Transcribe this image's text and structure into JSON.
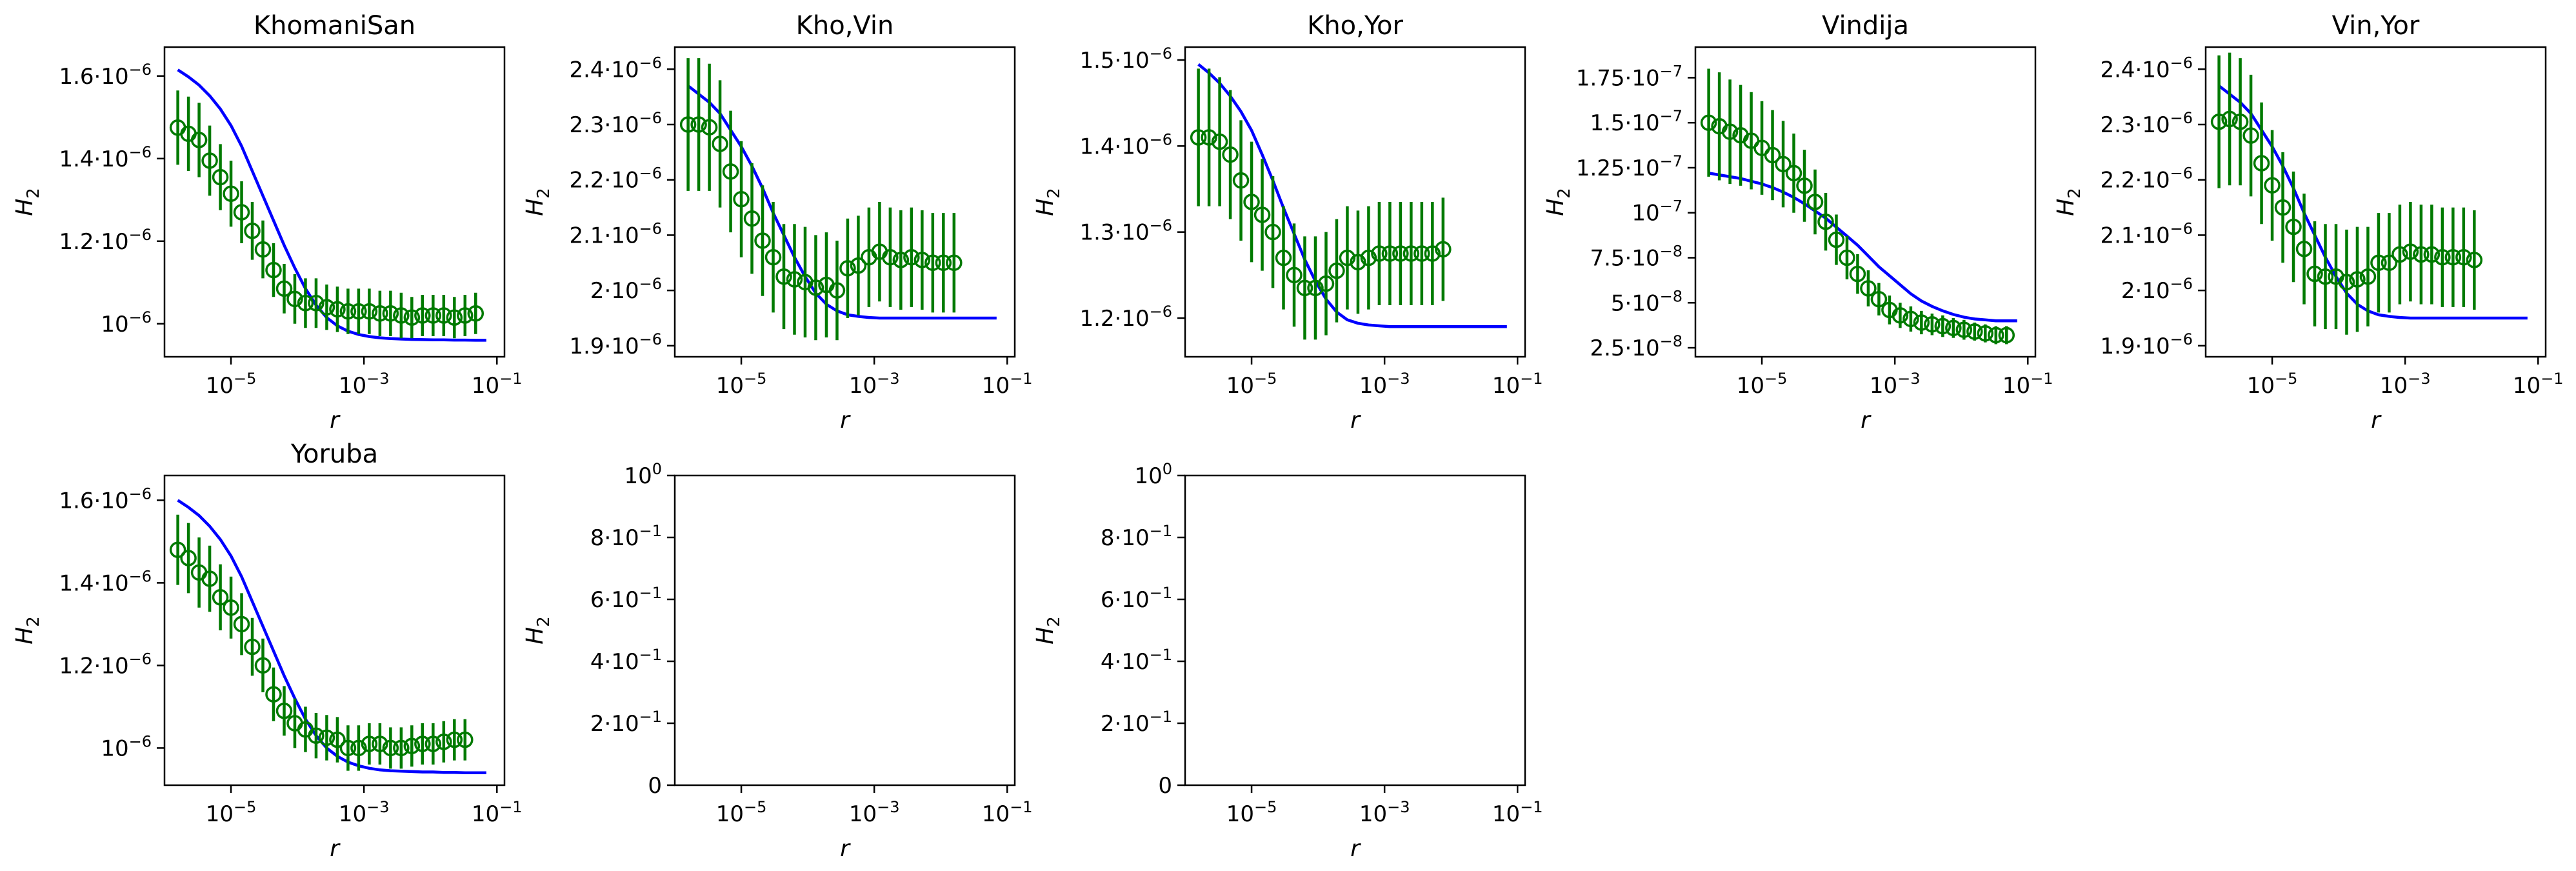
{
  "figure": {
    "grid": false,
    "colors": {
      "model": "#0000ff",
      "data": "#007a00",
      "frame": "#000000"
    }
  },
  "chart_data": [
    {
      "type": "line",
      "title": "KhomaniSan",
      "xlabel": "r",
      "ylabel": "H2",
      "xscale": "log",
      "xlim": [
        1e-06,
        0.13
      ],
      "ylim": [
        9.2e-07,
        1.67e-06
      ],
      "x_ticks": [
        {
          "v": 1e-05,
          "l": "10^-5"
        },
        {
          "v": 0.001,
          "l": "10^-3"
        },
        {
          "v": 0.1,
          "l": "10^-1"
        }
      ],
      "y_ticks": [
        {
          "v": 1.6e-06,
          "l": "1.6·10^-6"
        },
        {
          "v": 1.4e-06,
          "l": "1.4·10^-6"
        },
        {
          "v": 1.2e-06,
          "l": "1.2·10^-6"
        },
        {
          "v": 1e-06,
          "l": "10^-6"
        }
      ],
      "model_y": [
        1.615e-06,
        1.598e-06,
        1.578e-06,
        1.552e-06,
        1.52e-06,
        1.48e-06,
        1.43e-06,
        1.37e-06,
        1.31e-06,
        1.25e-06,
        1.19e-06,
        1.135e-06,
        1.085e-06,
        1.045e-06,
        1.015e-06,
        9.95e-07,
        9.82e-07,
        9.74e-07,
        9.69e-07,
        9.66e-07,
        9.64e-07,
        9.63e-07,
        9.62e-07,
        9.615e-07,
        9.61e-07,
        9.61e-07,
        9.605e-07,
        9.605e-07,
        9.6e-07,
        9.6e-07
      ],
      "data_y": [
        1.475e-06,
        1.46e-06,
        1.445e-06,
        1.395e-06,
        1.355e-06,
        1.315e-06,
        1.27e-06,
        1.225e-06,
        1.18e-06,
        1.13e-06,
        1.085e-06,
        1.06e-06,
        1.05e-06,
        1.05e-06,
        1.04e-06,
        1.035e-06,
        1.03e-06,
        1.03e-06,
        1.03e-06,
        1.025e-06,
        1.025e-06,
        1.02e-06,
        1.015e-06,
        1.02e-06,
        1.02e-06,
        1.02e-06,
        1.015e-06,
        1.02e-06,
        1.025e-06
      ],
      "data_err": [
        9e-08,
        9e-08,
        9e-08,
        8.5e-08,
        8e-08,
        8e-08,
        7.5e-08,
        7e-08,
        7e-08,
        6.5e-08,
        6e-08,
        6e-08,
        6e-08,
        6e-08,
        5.5e-08,
        5.5e-08,
        5.5e-08,
        5.5e-08,
        5.5e-08,
        5.5e-08,
        5.5e-08,
        5.5e-08,
        5e-08,
        5e-08,
        5e-08,
        5e-08,
        5e-08,
        5e-08,
        5e-08
      ]
    },
    {
      "type": "line",
      "title": "Kho,Vin",
      "xlabel": "r",
      "ylabel": "H2",
      "xscale": "log",
      "xlim": [
        1e-06,
        0.13
      ],
      "ylim": [
        1.88e-06,
        2.44e-06
      ],
      "x_ticks": [
        {
          "v": 1e-05,
          "l": "10^-5"
        },
        {
          "v": 0.001,
          "l": "10^-3"
        },
        {
          "v": 0.1,
          "l": "10^-1"
        }
      ],
      "y_ticks": [
        {
          "v": 2.4e-06,
          "l": "2.4·10^-6"
        },
        {
          "v": 2.3e-06,
          "l": "2.3·10^-6"
        },
        {
          "v": 2.2e-06,
          "l": "2.2·10^-6"
        },
        {
          "v": 2.1e-06,
          "l": "2.1·10^-6"
        },
        {
          "v": 2e-06,
          "l": "2·10^-6"
        },
        {
          "v": 1.9e-06,
          "l": "1.9·10^-6"
        }
      ],
      "model_y": [
        2.37e-06,
        2.355e-06,
        2.34e-06,
        2.32e-06,
        2.29e-06,
        2.26e-06,
        2.225e-06,
        2.185e-06,
        2.14e-06,
        2.1e-06,
        2.06e-06,
        2.025e-06,
        1.995e-06,
        1.975e-06,
        1.963e-06,
        1.956e-06,
        1.953e-06,
        1.951e-06,
        1.95e-06,
        1.95e-06,
        1.95e-06,
        1.95e-06,
        1.95e-06,
        1.95e-06,
        1.95e-06,
        1.95e-06,
        1.95e-06,
        1.95e-06,
        1.95e-06,
        1.95e-06
      ],
      "data_y": [
        2.3e-06,
        2.3e-06,
        2.295e-06,
        2.265e-06,
        2.215e-06,
        2.165e-06,
        2.13e-06,
        2.09e-06,
        2.06e-06,
        2.025e-06,
        2.02e-06,
        2.015e-06,
        2.005e-06,
        2.01e-06,
        2e-06,
        2.04e-06,
        2.045e-06,
        2.06e-06,
        2.07e-06,
        2.06e-06,
        2.055e-06,
        2.06e-06,
        2.055e-06,
        2.05e-06,
        2.05e-06,
        2.05e-06
      ],
      "data_err": [
        1.2e-07,
        1.2e-07,
        1.15e-07,
        1.15e-07,
        1.1e-07,
        1.05e-07,
        1e-07,
        1e-07,
        1e-07,
        9.5e-08,
        1e-07,
        1e-07,
        9.5e-08,
        9.5e-08,
        9e-08,
        9e-08,
        9e-08,
        9e-08,
        9e-08,
        9e-08,
        9e-08,
        9e-08,
        9e-08,
        9e-08,
        9e-08,
        9e-08
      ]
    },
    {
      "type": "line",
      "title": "Kho,Yor",
      "xlabel": "r",
      "ylabel": "H2",
      "xscale": "log",
      "xlim": [
        1e-06,
        0.13
      ],
      "ylim": [
        1.155e-06,
        1.515e-06
      ],
      "x_ticks": [
        {
          "v": 1e-05,
          "l": "10^-5"
        },
        {
          "v": 0.001,
          "l": "10^-3"
        },
        {
          "v": 0.1,
          "l": "10^-1"
        }
      ],
      "y_ticks": [
        {
          "v": 1.5e-06,
          "l": "1.5·10^-6"
        },
        {
          "v": 1.4e-06,
          "l": "1.4·10^-6"
        },
        {
          "v": 1.3e-06,
          "l": "1.3·10^-6"
        },
        {
          "v": 1.2e-06,
          "l": "1.2·10^-6"
        }
      ],
      "model_y": [
        1.495e-06,
        1.485e-06,
        1.473e-06,
        1.458e-06,
        1.44e-06,
        1.418e-06,
        1.39e-06,
        1.36e-06,
        1.328e-06,
        1.298e-06,
        1.268e-06,
        1.243e-06,
        1.222e-06,
        1.207e-06,
        1.198e-06,
        1.194e-06,
        1.192e-06,
        1.191e-06,
        1.19e-06,
        1.19e-06,
        1.19e-06,
        1.19e-06,
        1.19e-06,
        1.19e-06,
        1.19e-06,
        1.19e-06,
        1.19e-06,
        1.19e-06,
        1.19e-06,
        1.19e-06
      ],
      "data_y": [
        1.41e-06,
        1.41e-06,
        1.405e-06,
        1.39e-06,
        1.36e-06,
        1.335e-06,
        1.32e-06,
        1.3e-06,
        1.27e-06,
        1.25e-06,
        1.235e-06,
        1.235e-06,
        1.24e-06,
        1.255e-06,
        1.27e-06,
        1.265e-06,
        1.27e-06,
        1.275e-06,
        1.275e-06,
        1.275e-06,
        1.275e-06,
        1.275e-06,
        1.275e-06,
        1.28e-06
      ],
      "data_err": [
        8e-08,
        8e-08,
        7.5e-08,
        7.5e-08,
        7e-08,
        7e-08,
        6.5e-08,
        6.5e-08,
        6e-08,
        6e-08,
        6e-08,
        6e-08,
        6e-08,
        6e-08,
        6e-08,
        6e-08,
        6e-08,
        6e-08,
        6e-08,
        6e-08,
        6e-08,
        6e-08,
        6e-08,
        6e-08
      ]
    },
    {
      "type": "line",
      "title": "Vindija",
      "xlabel": "r",
      "ylabel": "H2",
      "xscale": "log",
      "xlim": [
        1e-06,
        0.13
      ],
      "ylim": [
        2e-08,
        1.92e-07
      ],
      "x_ticks": [
        {
          "v": 1e-05,
          "l": "10^-5"
        },
        {
          "v": 0.001,
          "l": "10^-3"
        },
        {
          "v": 0.1,
          "l": "10^-1"
        }
      ],
      "y_ticks": [
        {
          "v": 1.75e-07,
          "l": "1.75·10^-7"
        },
        {
          "v": 1.5e-07,
          "l": "1.5·10^-7"
        },
        {
          "v": 1.25e-07,
          "l": "1.25·10^-7"
        },
        {
          "v": 1e-07,
          "l": "10^-7"
        },
        {
          "v": 7.5e-08,
          "l": "7.5·10^-8"
        },
        {
          "v": 5e-08,
          "l": "5·10^-8"
        },
        {
          "v": 2.5e-08,
          "l": "2.5·10^-8"
        }
      ],
      "model_y": [
        1.22e-07,
        1.21e-07,
        1.2e-07,
        1.19e-07,
        1.175e-07,
        1.16e-07,
        1.14e-07,
        1.115e-07,
        1.085e-07,
        1.05e-07,
        1.01e-07,
        9.7e-08,
        9.2e-08,
        8.7e-08,
        8.2e-08,
        7.6e-08,
        7e-08,
        6.5e-08,
        6e-08,
        5.5e-08,
        5.1e-08,
        4.8e-08,
        4.55e-08,
        4.35e-08,
        4.2e-08,
        4.1e-08,
        4.05e-08,
        4e-08,
        4e-08,
        4e-08
      ],
      "data_y": [
        1.5e-07,
        1.48e-07,
        1.45e-07,
        1.43e-07,
        1.4e-07,
        1.36e-07,
        1.32e-07,
        1.27e-07,
        1.22e-07,
        1.15e-07,
        1.06e-07,
        9.5e-08,
        8.5e-08,
        7.5e-08,
        6.6e-08,
        5.8e-08,
        5.2e-08,
        4.6e-08,
        4.3e-08,
        4.1e-08,
        3.9e-08,
        3.8e-08,
        3.7e-08,
        3.6e-08,
        3.5e-08,
        3.4e-08,
        3.3e-08,
        3.2e-08,
        3.2e-08
      ],
      "data_err": [
        3e-08,
        3e-08,
        2.9e-08,
        2.8e-08,
        2.7e-08,
        2.6e-08,
        2.5e-08,
        2.4e-08,
        2.2e-08,
        2e-08,
        1.8e-08,
        1.6e-08,
        1.4e-08,
        1.2e-08,
        1.1e-08,
        1e-08,
        9e-09,
        8e-09,
        7e-09,
        7e-09,
        6.5e-09,
        6e-09,
        6e-09,
        5.5e-09,
        5.5e-09,
        5e-09,
        5e-09,
        5e-09,
        5e-09
      ]
    },
    {
      "type": "line",
      "title": "Vin,Yor",
      "xlabel": "r",
      "ylabel": "H2",
      "xscale": "log",
      "xlim": [
        1e-06,
        0.13
      ],
      "ylim": [
        1.88e-06,
        2.44e-06
      ],
      "x_ticks": [
        {
          "v": 1e-05,
          "l": "10^-5"
        },
        {
          "v": 0.001,
          "l": "10^-3"
        },
        {
          "v": 0.1,
          "l": "10^-1"
        }
      ],
      "y_ticks": [
        {
          "v": 2.4e-06,
          "l": "2.4·10^-6"
        },
        {
          "v": 2.3e-06,
          "l": "2.3·10^-6"
        },
        {
          "v": 2.2e-06,
          "l": "2.2·10^-6"
        },
        {
          "v": 2.1e-06,
          "l": "2.1·10^-6"
        },
        {
          "v": 2e-06,
          "l": "2·10^-6"
        },
        {
          "v": 1.9e-06,
          "l": "1.9·10^-6"
        }
      ],
      "model_y": [
        2.37e-06,
        2.355e-06,
        2.34e-06,
        2.32e-06,
        2.29e-06,
        2.26e-06,
        2.225e-06,
        2.185e-06,
        2.14e-06,
        2.1e-06,
        2.06e-06,
        2.025e-06,
        1.995e-06,
        1.975e-06,
        1.963e-06,
        1.956e-06,
        1.953e-06,
        1.951e-06,
        1.95e-06,
        1.95e-06,
        1.95e-06,
        1.95e-06,
        1.95e-06,
        1.95e-06,
        1.95e-06,
        1.95e-06,
        1.95e-06,
        1.95e-06,
        1.95e-06,
        1.95e-06
      ],
      "data_y": [
        2.305e-06,
        2.31e-06,
        2.305e-06,
        2.28e-06,
        2.23e-06,
        2.19e-06,
        2.15e-06,
        2.115e-06,
        2.075e-06,
        2.03e-06,
        2.025e-06,
        2.025e-06,
        2.015e-06,
        2.02e-06,
        2.025e-06,
        2.05e-06,
        2.05e-06,
        2.065e-06,
        2.07e-06,
        2.065e-06,
        2.065e-06,
        2.06e-06,
        2.06e-06,
        2.06e-06,
        2.055e-06
      ],
      "data_err": [
        1.2e-07,
        1.2e-07,
        1.15e-07,
        1.1e-07,
        1.1e-07,
        1e-07,
        1e-07,
        1e-07,
        1e-07,
        9.5e-08,
        9.5e-08,
        9.5e-08,
        9.5e-08,
        9.5e-08,
        9e-08,
        9e-08,
        9e-08,
        9e-08,
        9e-08,
        9e-08,
        9e-08,
        9e-08,
        9e-08,
        9e-08,
        9e-08
      ]
    },
    {
      "type": "line",
      "title": "Yoruba",
      "xlabel": "r",
      "ylabel": "H2",
      "xscale": "log",
      "xlim": [
        1e-06,
        0.13
      ],
      "ylim": [
        9.1e-07,
        1.66e-06
      ],
      "x_ticks": [
        {
          "v": 1e-05,
          "l": "10^-5"
        },
        {
          "v": 0.001,
          "l": "10^-3"
        },
        {
          "v": 0.1,
          "l": "10^-1"
        }
      ],
      "y_ticks": [
        {
          "v": 1.6e-06,
          "l": "1.6·10^-6"
        },
        {
          "v": 1.4e-06,
          "l": "1.4·10^-6"
        },
        {
          "v": 1.2e-06,
          "l": "1.2·10^-6"
        },
        {
          "v": 1e-06,
          "l": "10^-6"
        }
      ],
      "model_y": [
        1.6e-06,
        1.583e-06,
        1.563e-06,
        1.537e-06,
        1.505e-06,
        1.465e-06,
        1.415e-06,
        1.355e-06,
        1.295e-06,
        1.235e-06,
        1.175e-06,
        1.12e-06,
        1.07e-06,
        1.03e-06,
        1e-06,
        9.8e-07,
        9.66e-07,
        9.57e-07,
        9.51e-07,
        9.47e-07,
        9.45e-07,
        9.44e-07,
        9.43e-07,
        9.42e-07,
        9.42e-07,
        9.41e-07,
        9.41e-07,
        9.4e-07,
        9.4e-07,
        9.4e-07
      ],
      "data_y": [
        1.48e-06,
        1.46e-06,
        1.425e-06,
        1.41e-06,
        1.365e-06,
        1.34e-06,
        1.3e-06,
        1.245e-06,
        1.2e-06,
        1.13e-06,
        1.09e-06,
        1.06e-06,
        1.045e-06,
        1.03e-06,
        1.025e-06,
        1.02e-06,
        1e-06,
        1e-06,
        1.01e-06,
        1.01e-06,
        1e-06,
        1e-06,
        1.005e-06,
        1.01e-06,
        1.01e-06,
        1.015e-06,
        1.02e-06,
        1.02e-06
      ],
      "data_err": [
        8.5e-08,
        8.5e-08,
        8.5e-08,
        8e-08,
        8e-08,
        7.5e-08,
        7.5e-08,
        7e-08,
        6.5e-08,
        6.5e-08,
        6e-08,
        6e-08,
        5.5e-08,
        5.5e-08,
        5.5e-08,
        5.5e-08,
        5.5e-08,
        5.5e-08,
        5e-08,
        5e-08,
        5e-08,
        5e-08,
        5e-08,
        5e-08,
        5e-08,
        5e-08,
        5e-08,
        5e-08
      ]
    },
    {
      "type": "line",
      "title": "",
      "xlabel": "r",
      "ylabel": "H2",
      "xscale": "log",
      "xlim": [
        1e-06,
        0.13
      ],
      "ylim": [
        0,
        1
      ],
      "x_ticks": [
        {
          "v": 1e-05,
          "l": "10^-5"
        },
        {
          "v": 0.001,
          "l": "10^-3"
        },
        {
          "v": 0.1,
          "l": "10^-1"
        }
      ],
      "y_ticks": [
        {
          "v": 1.0,
          "l": "10^0"
        },
        {
          "v": 0.8,
          "l": "8·10^-1"
        },
        {
          "v": 0.6,
          "l": "6·10^-1"
        },
        {
          "v": 0.4,
          "l": "4·10^-1"
        },
        {
          "v": 0.2,
          "l": "2·10^-1"
        },
        {
          "v": 0,
          "l": "0"
        }
      ],
      "model_y": [],
      "data_y": [],
      "data_err": []
    },
    {
      "type": "line",
      "title": "",
      "xlabel": "r",
      "ylabel": "H2",
      "xscale": "log",
      "xlim": [
        1e-06,
        0.13
      ],
      "ylim": [
        0,
        1
      ],
      "x_ticks": [
        {
          "v": 1e-05,
          "l": "10^-5"
        },
        {
          "v": 0.001,
          "l": "10^-3"
        },
        {
          "v": 0.1,
          "l": "10^-1"
        }
      ],
      "y_ticks": [
        {
          "v": 1.0,
          "l": "10^0"
        },
        {
          "v": 0.8,
          "l": "8·10^-1"
        },
        {
          "v": 0.6,
          "l": "6·10^-1"
        },
        {
          "v": 0.4,
          "l": "4·10^-1"
        },
        {
          "v": 0.2,
          "l": "2·10^-1"
        },
        {
          "v": 0,
          "l": "0"
        }
      ],
      "model_y": [],
      "data_y": [],
      "data_err": []
    }
  ]
}
